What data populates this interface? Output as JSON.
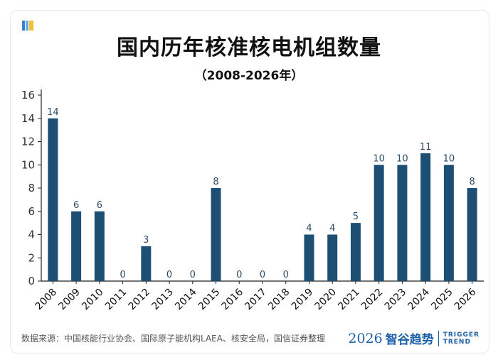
{
  "title": "国内历年核准核电机组数量",
  "subtitle": "（2008-2026年）",
  "source": "数据来源：中国核能行业协会、国际原子能机构LAEA、核安全局，国信证券整理",
  "brand": {
    "year": "2026",
    "name_cn": "智谷趋势",
    "name_en_1": "TRIGGER",
    "name_en_2": "TREND"
  },
  "colors": {
    "bar": "#1d4e73",
    "text": "#333333",
    "brand": "#1a5fa8",
    "icon_blue": "#3b7fd4",
    "icon_yellow": "#f2c230"
  },
  "chart_data": {
    "type": "bar",
    "title": "国内历年核准核电机组数量",
    "subtitle": "（2008-2026年）",
    "xlabel": "",
    "ylabel": "",
    "categories": [
      "2008",
      "2009",
      "2010",
      "2011",
      "2012",
      "2013",
      "2014",
      "2015",
      "2016",
      "2017",
      "2018",
      "2019",
      "2020",
      "2021",
      "2022",
      "2023",
      "2024",
      "2025",
      "2026"
    ],
    "values": [
      14,
      6,
      6,
      0,
      3,
      0,
      0,
      8,
      0,
      0,
      0,
      4,
      4,
      5,
      10,
      10,
      11,
      10,
      8
    ],
    "ylim": [
      0,
      16
    ],
    "yticks": [
      0,
      2,
      4,
      6,
      8,
      10,
      12,
      14,
      16
    ],
    "grid": false,
    "legend": "none",
    "data_labels": true
  }
}
